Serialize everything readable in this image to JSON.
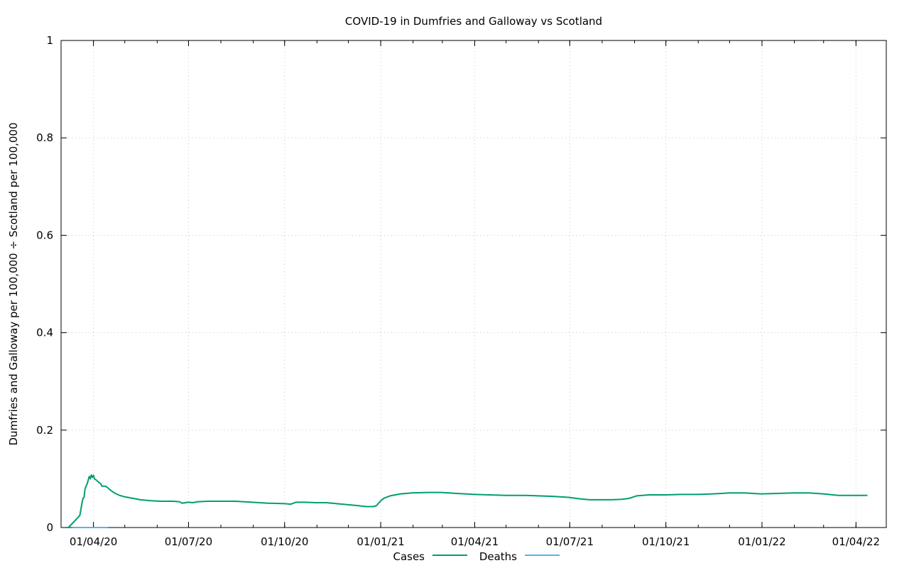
{
  "chart_data": {
    "type": "line",
    "title": "COVID-19 in Dumfries and Galloway vs Scotland",
    "xlabel": "",
    "ylabel": "Dumfries and Galloway per 100,000 ÷ Scotland per 100,000",
    "xlim": [
      "2020-03-01",
      "2022-04-30"
    ],
    "ylim": [
      0,
      1
    ],
    "x_ticks": [
      "01/04/20",
      "01/07/20",
      "01/10/20",
      "01/01/21",
      "01/04/21",
      "01/07/21",
      "01/10/21",
      "01/01/22",
      "01/04/22"
    ],
    "x_tick_dates": [
      "2020-04-01",
      "2020-07-01",
      "2020-10-01",
      "2021-01-01",
      "2021-04-01",
      "2021-07-01",
      "2021-10-01",
      "2022-01-01",
      "2022-04-01"
    ],
    "y_ticks": [
      "0",
      "0.2",
      "0.4",
      "0.6",
      "0.8",
      "1"
    ],
    "y_tick_values": [
      0,
      0.2,
      0.4,
      0.6,
      0.8,
      1
    ],
    "grid": true,
    "legend_position": "bottom",
    "series": [
      {
        "name": "Cases",
        "color": "#009e73",
        "points": [
          [
            "2020-03-06",
            0.0
          ],
          [
            "2020-03-08",
            0.0
          ],
          [
            "2020-03-16",
            0.018
          ],
          [
            "2020-03-19",
            0.025
          ],
          [
            "2020-03-21",
            0.05
          ],
          [
            "2020-03-22",
            0.06
          ],
          [
            "2020-03-23",
            0.062
          ],
          [
            "2020-03-24",
            0.08
          ],
          [
            "2020-03-26",
            0.09
          ],
          [
            "2020-03-28",
            0.105
          ],
          [
            "2020-03-29",
            0.1
          ],
          [
            "2020-03-30",
            0.108
          ],
          [
            "2020-03-31",
            0.103
          ],
          [
            "2020-04-01",
            0.107
          ],
          [
            "2020-04-02",
            0.1
          ],
          [
            "2020-04-04",
            0.097
          ],
          [
            "2020-04-06",
            0.093
          ],
          [
            "2020-04-08",
            0.09
          ],
          [
            "2020-04-09",
            0.085
          ],
          [
            "2020-04-12",
            0.085
          ],
          [
            "2020-04-14",
            0.083
          ],
          [
            "2020-04-16",
            0.079
          ],
          [
            "2020-04-19",
            0.074
          ],
          [
            "2020-04-22",
            0.07
          ],
          [
            "2020-04-26",
            0.066
          ],
          [
            "2020-05-01",
            0.063
          ],
          [
            "2020-05-06",
            0.061
          ],
          [
            "2020-05-16",
            0.057
          ],
          [
            "2020-05-26",
            0.055
          ],
          [
            "2020-06-05",
            0.054
          ],
          [
            "2020-06-16",
            0.054
          ],
          [
            "2020-06-22",
            0.053
          ],
          [
            "2020-06-25",
            0.05
          ],
          [
            "2020-06-28",
            0.051
          ],
          [
            "2020-07-01",
            0.052
          ],
          [
            "2020-07-05",
            0.051
          ],
          [
            "2020-07-10",
            0.053
          ],
          [
            "2020-07-20",
            0.054
          ],
          [
            "2020-07-31",
            0.054
          ],
          [
            "2020-08-15",
            0.054
          ],
          [
            "2020-08-31",
            0.052
          ],
          [
            "2020-09-15",
            0.05
          ],
          [
            "2020-10-01",
            0.049
          ],
          [
            "2020-10-07",
            0.048
          ],
          [
            "2020-10-12",
            0.052
          ],
          [
            "2020-10-20",
            0.052
          ],
          [
            "2020-10-31",
            0.051
          ],
          [
            "2020-11-10",
            0.051
          ],
          [
            "2020-11-20",
            0.049
          ],
          [
            "2020-11-30",
            0.047
          ],
          [
            "2020-12-10",
            0.045
          ],
          [
            "2020-12-18",
            0.043
          ],
          [
            "2020-12-25",
            0.043
          ],
          [
            "2020-12-28",
            0.045
          ],
          [
            "2021-01-01",
            0.055
          ],
          [
            "2021-01-04",
            0.06
          ],
          [
            "2021-01-10",
            0.065
          ],
          [
            "2021-01-20",
            0.069
          ],
          [
            "2021-01-31",
            0.071
          ],
          [
            "2021-02-15",
            0.072
          ],
          [
            "2021-02-28",
            0.072
          ],
          [
            "2021-03-15",
            0.07
          ],
          [
            "2021-04-01",
            0.068
          ],
          [
            "2021-04-15",
            0.067
          ],
          [
            "2021-05-01",
            0.066
          ],
          [
            "2021-05-20",
            0.066
          ],
          [
            "2021-06-01",
            0.065
          ],
          [
            "2021-06-15",
            0.064
          ],
          [
            "2021-06-30",
            0.062
          ],
          [
            "2021-07-10",
            0.059
          ],
          [
            "2021-07-20",
            0.057
          ],
          [
            "2021-07-31",
            0.057
          ],
          [
            "2021-08-10",
            0.057
          ],
          [
            "2021-08-20",
            0.058
          ],
          [
            "2021-08-27",
            0.06
          ],
          [
            "2021-09-03",
            0.065
          ],
          [
            "2021-09-15",
            0.067
          ],
          [
            "2021-10-01",
            0.067
          ],
          [
            "2021-10-15",
            0.068
          ],
          [
            "2021-11-01",
            0.068
          ],
          [
            "2021-11-15",
            0.069
          ],
          [
            "2021-12-01",
            0.071
          ],
          [
            "2021-12-15",
            0.071
          ],
          [
            "2021-12-31",
            0.069
          ],
          [
            "2022-01-15",
            0.07
          ],
          [
            "2022-02-01",
            0.071
          ],
          [
            "2022-02-15",
            0.071
          ],
          [
            "2022-03-01",
            0.069
          ],
          [
            "2022-03-15",
            0.066
          ],
          [
            "2022-03-31",
            0.066
          ],
          [
            "2022-04-12",
            0.066
          ]
        ]
      },
      {
        "name": "Deaths",
        "color": "#56b4e9",
        "points": [
          [
            "2020-03-12",
            0.0
          ],
          [
            "2020-04-15",
            0.0
          ]
        ]
      }
    ]
  }
}
